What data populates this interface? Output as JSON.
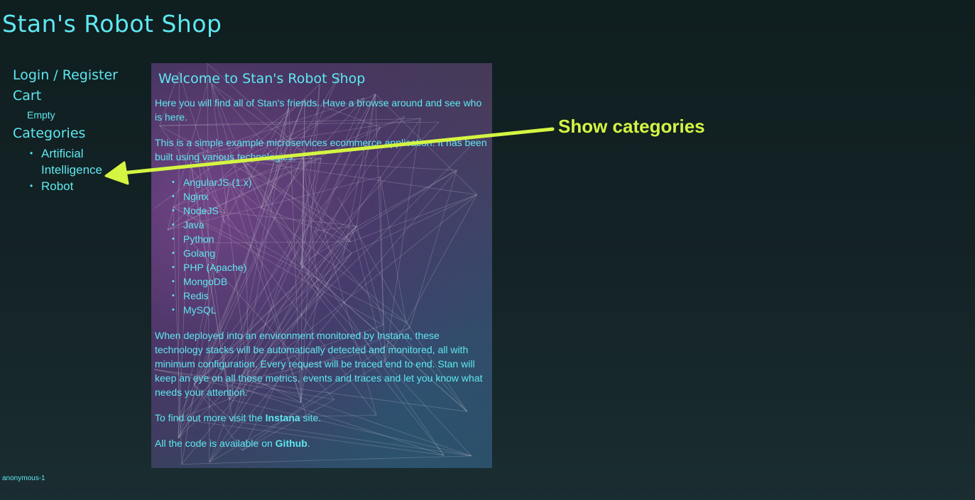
{
  "header": {
    "title": "Stan's Robot Shop"
  },
  "sidebar": {
    "login_label": "Login / Register",
    "cart_label": "Cart",
    "cart_status": "Empty",
    "categories_label": "Categories",
    "categories": [
      {
        "label": "Artificial Intelligence"
      },
      {
        "label": "Robot"
      }
    ]
  },
  "main": {
    "title": "Welcome to Stan's Robot Shop",
    "intro": "Here you will find all of Stan's friends. Have a browse around and see who is here.",
    "description": "This is a simple example microservices ecommerce application. It has been built using various technologies:",
    "technologies": [
      "AngularJS (1.x)",
      "Nginx",
      "NodeJS",
      "Java",
      "Python",
      "Golang",
      "PHP (Apache)",
      "MongoDB",
      "Redis",
      "MySQL"
    ],
    "instana_text": "When deployed into an environment monitored by Instana, these technology stacks will be automatically detected and monitored, all with minimum configuration. Every request will be traced end to end. Stan will keep an eye on all those metrics, events and traces and let you know what needs your attention.",
    "more_prefix": "To find out more visit the ",
    "instana_link": "Instana",
    "more_suffix": " site.",
    "code_prefix": "All the code is available on ",
    "github_link": "Github",
    "code_suffix": "."
  },
  "footer": {
    "user": "anonymous-1"
  },
  "annotation": {
    "label": "Show categories",
    "color": "#d4f542"
  },
  "colors": {
    "accent": "#5ee8f0",
    "background": "#142326"
  }
}
